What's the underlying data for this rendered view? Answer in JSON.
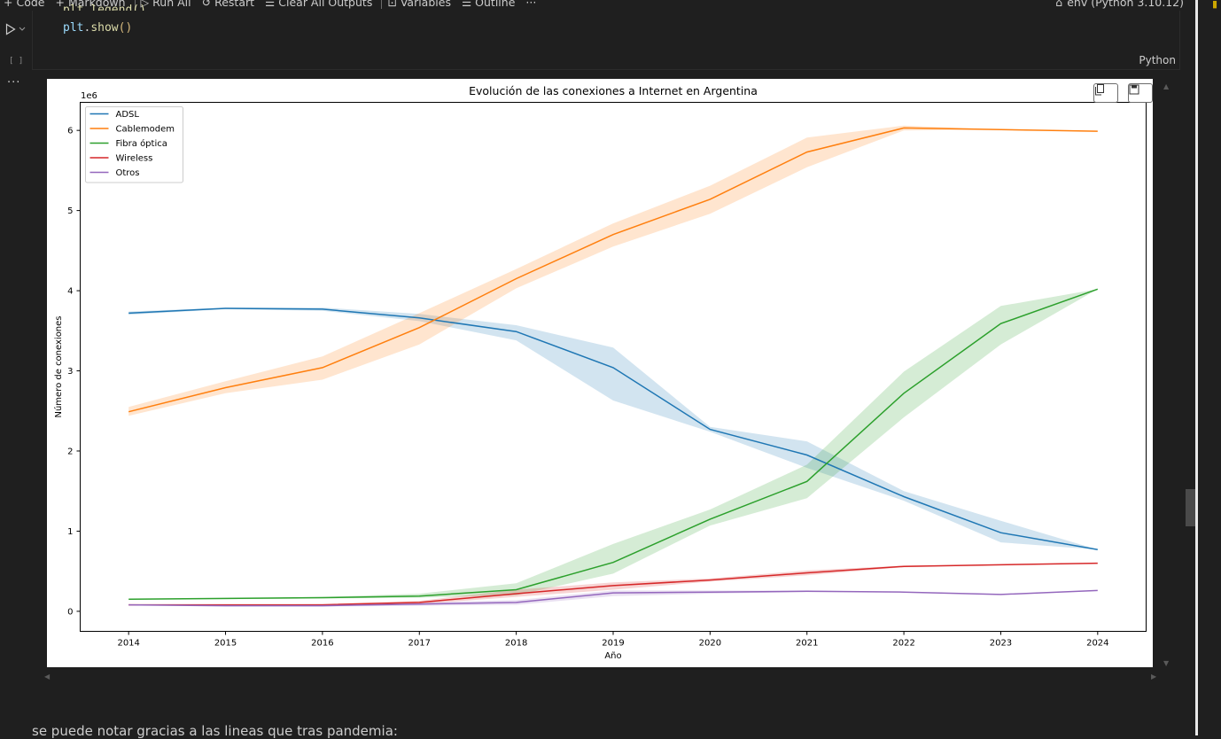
{
  "toolbar": {
    "code": "Code",
    "markdown": "Markdown",
    "run_all": "Run All",
    "restart": "Restart",
    "clear_outputs": "Clear All Outputs",
    "variables": "Variables",
    "outline": "Outline",
    "more": "···",
    "kernel": "env (Python 3.10.12)"
  },
  "cell": {
    "code_partial": "plt.legend()",
    "code_obj": "plt",
    "code_dot": ".",
    "code_fn": "show",
    "code_parens": "()",
    "exec_count": "[ ]",
    "language": "Python"
  },
  "output": {
    "more": "···"
  },
  "markdown": {
    "text": "se puede notar gracias a las lineas que tras pandemia:"
  },
  "chart_data": {
    "type": "line",
    "title": "Evolución de las conexiones a Internet en Argentina",
    "xlabel": "Año",
    "ylabel": "Número de conexiones",
    "y_offset_label": "1e6",
    "x": [
      2014,
      2015,
      2016,
      2017,
      2018,
      2019,
      2020,
      2021,
      2022,
      2023,
      2024
    ],
    "xlim": [
      2013.5,
      2024.5
    ],
    "ylim": [
      -0.25,
      6.35
    ],
    "yticks": [
      0,
      1,
      2,
      3,
      4,
      5,
      6
    ],
    "legend_position": "upper-left",
    "grid": false,
    "series": [
      {
        "name": "ADSL",
        "color": "#1f77b4",
        "values": [
          3.72,
          3.78,
          3.77,
          3.66,
          3.49,
          3.04,
          2.27,
          1.95,
          1.43,
          0.98,
          0.77
        ],
        "lower": [
          3.7,
          3.77,
          3.75,
          3.62,
          3.38,
          2.63,
          2.24,
          1.79,
          1.38,
          0.86,
          0.77
        ],
        "upper": [
          3.74,
          3.79,
          3.79,
          3.71,
          3.57,
          3.29,
          2.3,
          2.12,
          1.5,
          1.13,
          0.77
        ]
      },
      {
        "name": "Cablemodem",
        "color": "#ff7f0e",
        "values": [
          2.49,
          2.79,
          3.04,
          3.54,
          4.15,
          4.7,
          5.14,
          5.73,
          6.03,
          6.01,
          5.99
        ],
        "lower": [
          2.44,
          2.72,
          2.89,
          3.33,
          4.03,
          4.55,
          4.96,
          5.54,
          6.0,
          6.01,
          5.99
        ],
        "upper": [
          2.55,
          2.87,
          3.18,
          3.72,
          4.27,
          4.84,
          5.31,
          5.91,
          6.06,
          6.01,
          5.99
        ]
      },
      {
        "name": "Fibra óptica",
        "color": "#2ca02c",
        "values": [
          0.15,
          0.16,
          0.17,
          0.19,
          0.27,
          0.61,
          1.15,
          1.62,
          2.72,
          3.59,
          4.02
        ],
        "lower": [
          0.15,
          0.15,
          0.16,
          0.17,
          0.2,
          0.47,
          1.07,
          1.41,
          2.42,
          3.33,
          4.02
        ],
        "upper": [
          0.15,
          0.16,
          0.18,
          0.22,
          0.35,
          0.84,
          1.27,
          1.83,
          2.99,
          3.81,
          4.02
        ]
      },
      {
        "name": "Wireless",
        "color": "#d62728",
        "values": [
          0.08,
          0.08,
          0.08,
          0.11,
          0.22,
          0.32,
          0.39,
          0.48,
          0.56,
          0.58,
          0.6
        ],
        "lower": [
          0.08,
          0.08,
          0.07,
          0.09,
          0.18,
          0.27,
          0.37,
          0.45,
          0.55,
          0.58,
          0.6
        ],
        "upper": [
          0.08,
          0.08,
          0.09,
          0.13,
          0.27,
          0.36,
          0.41,
          0.51,
          0.57,
          0.58,
          0.6
        ]
      },
      {
        "name": "Otros",
        "color": "#9467bd",
        "values": [
          0.08,
          0.07,
          0.07,
          0.09,
          0.11,
          0.23,
          0.24,
          0.25,
          0.24,
          0.21,
          0.26
        ],
        "lower": [
          0.08,
          0.07,
          0.06,
          0.07,
          0.08,
          0.19,
          0.22,
          0.24,
          0.24,
          0.21,
          0.26
        ],
        "upper": [
          0.08,
          0.08,
          0.08,
          0.11,
          0.14,
          0.26,
          0.26,
          0.26,
          0.24,
          0.21,
          0.26
        ]
      }
    ]
  }
}
